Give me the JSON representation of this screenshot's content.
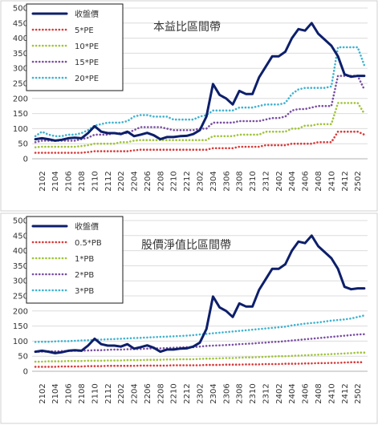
{
  "chart_data": [
    {
      "type": "line",
      "title": "本益比區間帶",
      "ylim": [
        0,
        500
      ],
      "yticks": [
        0,
        50,
        100,
        150,
        200,
        250,
        300,
        350,
        400,
        450,
        500
      ],
      "x": [
        "2101",
        "2102",
        "2103",
        "2104",
        "2105",
        "2106",
        "2107",
        "2108",
        "2109",
        "2110",
        "2111",
        "2112",
        "2201",
        "2202",
        "2203",
        "2204",
        "2205",
        "2206",
        "2207",
        "2208",
        "2209",
        "2210",
        "2211",
        "2212",
        "2301",
        "2302",
        "2303",
        "2304",
        "2305",
        "2306",
        "2307",
        "2308",
        "2309",
        "2310",
        "2311",
        "2312",
        "2401",
        "2402",
        "2403",
        "2404",
        "2405",
        "2406",
        "2407",
        "2408",
        "2409",
        "2410",
        "2411",
        "2412",
        "2501",
        "2502",
        "2503"
      ],
      "xticks": [
        "2102",
        "2104",
        "2106",
        "2108",
        "2110",
        "2112",
        "2202",
        "2204",
        "2206",
        "2208",
        "2210",
        "2212",
        "2302",
        "2304",
        "2306",
        "2308",
        "2310",
        "2312",
        "2402",
        "2404",
        "2406",
        "2408",
        "2410",
        "2412",
        "2502"
      ],
      "legend": {
        "position": "top-left"
      },
      "grid": "horizontal",
      "series": [
        {
          "name": "收盤價",
          "color": "#0d1f6b",
          "style": "solid",
          "values": [
            65,
            68,
            65,
            60,
            63,
            68,
            70,
            68,
            85,
            108,
            90,
            85,
            85,
            82,
            90,
            75,
            80,
            86,
            78,
            65,
            72,
            72,
            75,
            76,
            82,
            95,
            140,
            248,
            212,
            200,
            180,
            225,
            215,
            215,
            270,
            305,
            340,
            340,
            355,
            400,
            430,
            425,
            450,
            415,
            395,
            375,
            340,
            280,
            272,
            275,
            275
          ]
        },
        {
          "name": "5*PE",
          "color": "#d93a3a",
          "style": "dotted",
          "values": [
            20,
            20,
            20,
            20,
            20,
            20,
            20,
            20,
            22,
            25,
            25,
            25,
            25,
            25,
            25,
            28,
            30,
            30,
            30,
            30,
            30,
            30,
            30,
            30,
            30,
            30,
            30,
            35,
            35,
            35,
            35,
            40,
            40,
            40,
            40,
            45,
            45,
            45,
            45,
            50,
            50,
            50,
            50,
            55,
            55,
            55,
            90,
            90,
            90,
            90,
            80
          ]
        },
        {
          "name": "10*PE",
          "color": "#9fc43a",
          "style": "dotted",
          "values": [
            38,
            40,
            40,
            40,
            40,
            40,
            40,
            42,
            45,
            50,
            50,
            50,
            50,
            55,
            55,
            60,
            62,
            62,
            62,
            62,
            62,
            62,
            62,
            62,
            62,
            62,
            62,
            75,
            75,
            75,
            75,
            80,
            80,
            80,
            80,
            90,
            90,
            90,
            90,
            100,
            100,
            110,
            110,
            115,
            115,
            115,
            185,
            185,
            185,
            185,
            150
          ]
        },
        {
          "name": "15*PE",
          "color": "#7a4fa3",
          "style": "dotted",
          "values": [
            55,
            60,
            60,
            60,
            60,
            60,
            60,
            65,
            70,
            80,
            80,
            80,
            85,
            85,
            85,
            95,
            105,
            105,
            105,
            105,
            100,
            95,
            95,
            95,
            95,
            100,
            100,
            120,
            120,
            120,
            120,
            125,
            125,
            125,
            125,
            130,
            135,
            135,
            140,
            160,
            165,
            165,
            170,
            175,
            175,
            175,
            275,
            275,
            275,
            275,
            230
          ]
        },
        {
          "name": "20*PE",
          "color": "#3fb2d0",
          "style": "dotted",
          "values": [
            75,
            90,
            80,
            75,
            75,
            80,
            80,
            85,
            95,
            110,
            115,
            120,
            120,
            120,
            125,
            140,
            145,
            145,
            140,
            140,
            140,
            130,
            130,
            130,
            130,
            140,
            145,
            160,
            160,
            160,
            160,
            170,
            170,
            170,
            175,
            180,
            180,
            180,
            185,
            215,
            230,
            235,
            235,
            235,
            235,
            240,
            370,
            370,
            370,
            370,
            310
          ]
        }
      ]
    },
    {
      "type": "line",
      "title": "股價淨值比區間帶",
      "ylim": [
        0,
        500
      ],
      "yticks": [
        0,
        50,
        100,
        150,
        200,
        250,
        300,
        350,
        400,
        450,
        500
      ],
      "x": [
        "2101",
        "2102",
        "2103",
        "2104",
        "2105",
        "2106",
        "2107",
        "2108",
        "2109",
        "2110",
        "2111",
        "2112",
        "2201",
        "2202",
        "2203",
        "2204",
        "2205",
        "2206",
        "2207",
        "2208",
        "2209",
        "2210",
        "2211",
        "2212",
        "2301",
        "2302",
        "2303",
        "2304",
        "2305",
        "2306",
        "2307",
        "2308",
        "2309",
        "2310",
        "2311",
        "2312",
        "2401",
        "2402",
        "2403",
        "2404",
        "2405",
        "2406",
        "2407",
        "2408",
        "2409",
        "2410",
        "2411",
        "2412",
        "2501",
        "2502",
        "2503"
      ],
      "xticks": [
        "2102",
        "2104",
        "2106",
        "2108",
        "2110",
        "2112",
        "2202",
        "2204",
        "2206",
        "2208",
        "2210",
        "2212",
        "2302",
        "2304",
        "2306",
        "2308",
        "2310",
        "2312",
        "2402",
        "2404",
        "2406",
        "2408",
        "2410",
        "2412",
        "2502"
      ],
      "legend": {
        "position": "top-left"
      },
      "grid": "horizontal",
      "series": [
        {
          "name": "收盤價",
          "color": "#0d1f6b",
          "style": "solid",
          "values": [
            65,
            68,
            65,
            60,
            63,
            68,
            70,
            68,
            85,
            108,
            90,
            85,
            85,
            82,
            90,
            75,
            80,
            86,
            78,
            65,
            72,
            72,
            75,
            76,
            82,
            95,
            140,
            248,
            212,
            200,
            180,
            225,
            215,
            215,
            270,
            305,
            340,
            340,
            355,
            400,
            430,
            425,
            450,
            415,
            395,
            375,
            340,
            280,
            272,
            275,
            275
          ]
        },
        {
          "name": "0.5*PB",
          "color": "#d93a3a",
          "style": "dotted",
          "values": [
            15,
            15,
            15,
            15,
            16,
            16,
            16,
            16,
            17,
            17,
            17,
            18,
            18,
            18,
            18,
            18,
            19,
            19,
            19,
            19,
            19,
            20,
            20,
            20,
            20,
            20,
            21,
            21,
            21,
            22,
            22,
            22,
            23,
            23,
            23,
            24,
            24,
            24,
            25,
            25,
            25,
            26,
            26,
            27,
            27,
            28,
            28,
            29,
            30,
            30,
            30
          ]
        },
        {
          "name": "1*PB",
          "color": "#9fc43a",
          "style": "dotted",
          "values": [
            32,
            32,
            33,
            33,
            33,
            34,
            34,
            34,
            35,
            35,
            35,
            36,
            36,
            36,
            37,
            37,
            37,
            38,
            38,
            38,
            39,
            39,
            40,
            40,
            40,
            41,
            42,
            42,
            43,
            44,
            44,
            45,
            46,
            46,
            47,
            48,
            49,
            50,
            50,
            51,
            52,
            53,
            54,
            55,
            56,
            57,
            58,
            59,
            60,
            62,
            62
          ]
        },
        {
          "name": "2*PB",
          "color": "#7a4fa3",
          "style": "dotted",
          "values": [
            65,
            65,
            66,
            66,
            67,
            67,
            68,
            68,
            69,
            70,
            70,
            71,
            72,
            72,
            73,
            74,
            74,
            75,
            76,
            76,
            77,
            78,
            79,
            80,
            80,
            82,
            84,
            85,
            86,
            87,
            88,
            90,
            91,
            92,
            94,
            95,
            97,
            98,
            100,
            102,
            104,
            106,
            108,
            110,
            112,
            114,
            116,
            118,
            120,
            122,
            123
          ]
        },
        {
          "name": "3*PB",
          "color": "#3fb2d0",
          "style": "dotted",
          "values": [
            97,
            98,
            98,
            99,
            100,
            100,
            101,
            102,
            103,
            104,
            105,
            106,
            107,
            108,
            109,
            110,
            111,
            112,
            113,
            114,
            115,
            116,
            117,
            118,
            120,
            122,
            124,
            126,
            128,
            130,
            132,
            134,
            136,
            138,
            140,
            142,
            144,
            146,
            148,
            152,
            155,
            158,
            160,
            162,
            165,
            168,
            170,
            172,
            175,
            180,
            185
          ]
        }
      ]
    }
  ]
}
